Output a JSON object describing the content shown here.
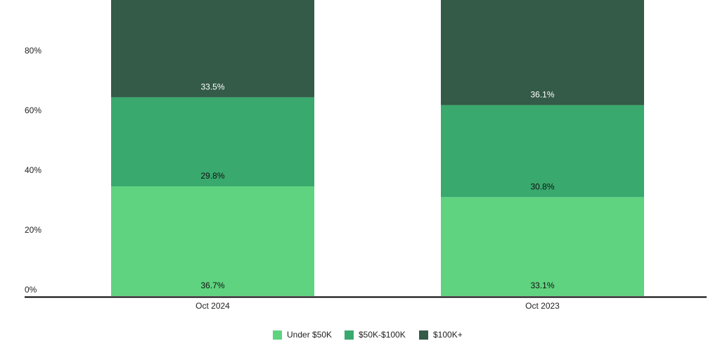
{
  "chart_data": {
    "type": "stacked_bar",
    "categories": [
      "Oct 2024",
      "Oct 2023"
    ],
    "series": [
      {
        "name": "Under $50K",
        "color": "#5fd37f",
        "values": [
          36.7,
          33.1
        ],
        "value_labels": [
          "36.7%",
          "33.1%"
        ]
      },
      {
        "name": "$50K-$100K",
        "color": "#39a96e",
        "values": [
          29.8,
          30.8
        ],
        "value_labels": [
          "29.8%",
          "30.8%"
        ]
      },
      {
        "name": "$100K+",
        "color": "#345a48",
        "values": [
          33.5,
          36.1
        ],
        "value_labels": [
          "33.5%",
          "36.1%"
        ]
      }
    ],
    "ylim": [
      0,
      100
    ],
    "yticks": [
      {
        "value": 0,
        "label": "0%"
      },
      {
        "value": 20,
        "label": "20%"
      },
      {
        "value": 40,
        "label": "40%"
      },
      {
        "value": 60,
        "label": "60%"
      },
      {
        "value": 80,
        "label": "80%"
      }
    ],
    "grid": false,
    "legend": "bottom"
  }
}
